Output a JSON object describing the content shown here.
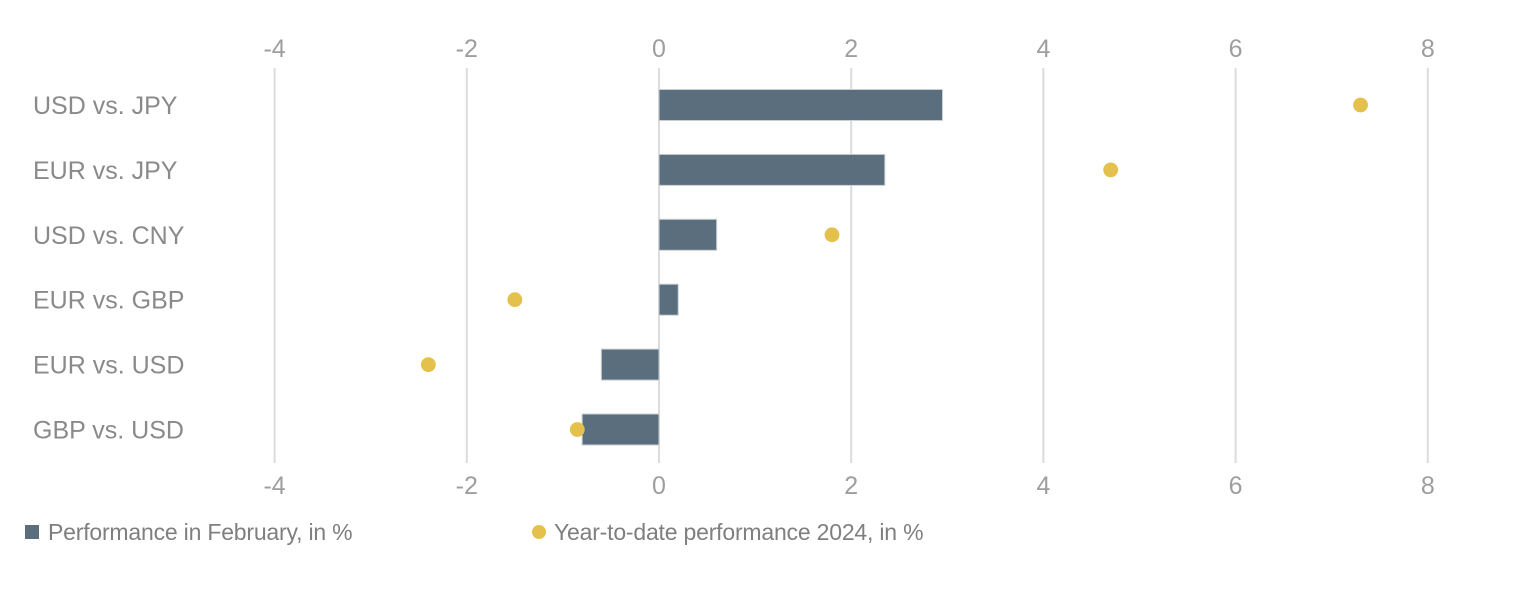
{
  "colors": {
    "bar": "#5a6e7d",
    "bar_edge": "#c9d0d5",
    "dot": "#e4c04c",
    "grid": "#dcdcdc",
    "tick_text": "#9e9e9e",
    "category_text": "#8a8a8a",
    "legend_text": "#7f7f7f",
    "background": "#ffffff"
  },
  "chart_data": {
    "type": "bar",
    "orientation": "horizontal",
    "title": "",
    "xlabel": "",
    "ylabel": "",
    "xlim": [
      -4,
      8
    ],
    "grid": true,
    "x_ticks": [
      -4,
      -2,
      0,
      2,
      4,
      6,
      8
    ],
    "x_tick_labels": [
      "-4",
      "-2",
      "0",
      "2",
      "4",
      "6",
      "8"
    ],
    "tick_labels_top": true,
    "tick_labels_bottom": true,
    "categories": [
      "USD vs. JPY",
      "EUR vs. JPY",
      "USD vs. CNY",
      "EUR vs. GBP",
      "EUR vs. USD",
      "GBP vs. USD"
    ],
    "series": [
      {
        "name": "Performance in February, in %",
        "marker": "bar",
        "values": [
          2.95,
          2.35,
          0.6,
          0.2,
          -0.6,
          -0.8
        ]
      },
      {
        "name": "Year-to-date performance 2024, in %",
        "marker": "dot",
        "values": [
          7.3,
          4.7,
          1.8,
          -1.5,
          -2.4,
          -0.85
        ]
      }
    ],
    "legend_position": "bottom"
  },
  "legend": {
    "feb_label": "Performance in February, in %",
    "ytd_label": "Year-to-date performance 2024, in %"
  }
}
